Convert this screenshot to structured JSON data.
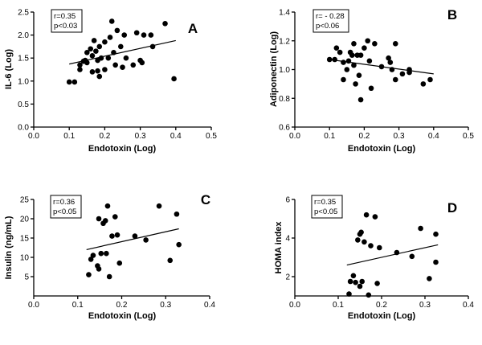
{
  "colors": {
    "ink": "#000000",
    "background": "#ffffff"
  },
  "chart_data": [
    {
      "type": "scatter",
      "letter": "A",
      "xlabel": "Endotoxin (Log)",
      "ylabel": "IL-6 (Log)",
      "grid": false,
      "xlim": [
        0,
        0.5
      ],
      "ylim": [
        0,
        2.5
      ],
      "xticks": [
        {
          "value": 0,
          "label": "0.0"
        },
        {
          "value": 0.1,
          "label": "0.1"
        },
        {
          "value": 0.2,
          "label": "0.2"
        },
        {
          "value": 0.3,
          "label": "0.3"
        },
        {
          "value": 0.4,
          "label": "0.4"
        },
        {
          "value": 0.5,
          "label": "0.5"
        }
      ],
      "yticks": [
        {
          "value": 0,
          "label": "0.0"
        },
        {
          "value": 0.5,
          "label": "0.5"
        },
        {
          "value": 1.0,
          "label": "1.0"
        },
        {
          "value": 1.5,
          "label": "1.5"
        },
        {
          "value": 2.0,
          "label": "2.0"
        },
        {
          "value": 2.5,
          "label": "2.5"
        }
      ],
      "stats": {
        "r": "r=0.35",
        "p": "p<0.03"
      },
      "fit_line": {
        "x": [
          0.1,
          0.4
        ],
        "y": [
          1.37,
          1.88
        ]
      },
      "x": [
        0.1,
        0.115,
        0.13,
        0.13,
        0.14,
        0.145,
        0.15,
        0.15,
        0.16,
        0.165,
        0.165,
        0.17,
        0.175,
        0.18,
        0.18,
        0.185,
        0.185,
        0.19,
        0.2,
        0.2,
        0.21,
        0.215,
        0.22,
        0.225,
        0.23,
        0.235,
        0.245,
        0.25,
        0.255,
        0.26,
        0.28,
        0.29,
        0.3,
        0.305,
        0.31,
        0.33,
        0.335,
        0.37,
        0.395
      ],
      "y": [
        0.98,
        0.98,
        1.35,
        1.25,
        1.43,
        1.45,
        1.62,
        1.4,
        1.7,
        1.55,
        1.2,
        1.88,
        1.65,
        1.45,
        1.22,
        1.1,
        1.75,
        1.5,
        1.25,
        1.85,
        1.5,
        1.95,
        2.3,
        1.62,
        1.35,
        2.1,
        1.75,
        1.3,
        2.0,
        1.5,
        1.35,
        2.05,
        1.45,
        1.4,
        2.0,
        2.0,
        1.75,
        2.25,
        1.05
      ]
    },
    {
      "type": "scatter",
      "letter": "B",
      "xlabel": "Endotoxin (Log)",
      "ylabel": "Adiponectin (Log)",
      "grid": false,
      "xlim": [
        0,
        0.5
      ],
      "ylim": [
        0.6,
        1.4
      ],
      "xticks": [
        {
          "value": 0,
          "label": "0.0"
        },
        {
          "value": 0.1,
          "label": "0.1"
        },
        {
          "value": 0.2,
          "label": "0.2"
        },
        {
          "value": 0.3,
          "label": "0.3"
        },
        {
          "value": 0.4,
          "label": "0.4"
        },
        {
          "value": 0.5,
          "label": "0.5"
        }
      ],
      "yticks": [
        {
          "value": 0.6,
          "label": "0.6"
        },
        {
          "value": 0.8,
          "label": "0.8"
        },
        {
          "value": 1.0,
          "label": "1.0"
        },
        {
          "value": 1.2,
          "label": "1.2"
        },
        {
          "value": 1.4,
          "label": "1.4"
        }
      ],
      "stats": {
        "r": "r= - 0.28",
        "p": "p<0.06"
      },
      "fit_line": {
        "x": [
          0.1,
          0.4
        ],
        "y": [
          1.07,
          0.97
        ]
      },
      "x": [
        0.1,
        0.115,
        0.12,
        0.13,
        0.14,
        0.14,
        0.15,
        0.155,
        0.16,
        0.165,
        0.17,
        0.17,
        0.175,
        0.18,
        0.19,
        0.185,
        0.19,
        0.2,
        0.21,
        0.215,
        0.22,
        0.23,
        0.25,
        0.27,
        0.275,
        0.28,
        0.29,
        0.29,
        0.31,
        0.33,
        0.33,
        0.37,
        0.39
      ],
      "y": [
        1.07,
        1.07,
        1.15,
        1.12,
        1.05,
        0.93,
        1.0,
        1.06,
        1.12,
        1.1,
        1.18,
        1.03,
        0.9,
        1.1,
        0.79,
        0.96,
        1.1,
        1.15,
        1.2,
        1.06,
        0.87,
        1.18,
        1.02,
        1.08,
        1.05,
        1.0,
        0.93,
        1.18,
        0.97,
        1.0,
        0.98,
        0.9,
        0.93
      ]
    },
    {
      "type": "scatter",
      "letter": "C",
      "xlabel": "Endotoxin (Log)",
      "ylabel": "Insulin (ng/mL)",
      "grid": false,
      "xlim": [
        0,
        0.4
      ],
      "ylim": [
        0,
        25
      ],
      "xticks": [
        {
          "value": 0,
          "label": "0.0"
        },
        {
          "value": 0.1,
          "label": "0.1"
        },
        {
          "value": 0.2,
          "label": "0.2"
        },
        {
          "value": 0.3,
          "label": "0.3"
        },
        {
          "value": 0.4,
          "label": "0.4"
        }
      ],
      "yticks": [
        {
          "value": 5,
          "label": "5"
        },
        {
          "value": 10,
          "label": "10"
        },
        {
          "value": 15,
          "label": "15"
        },
        {
          "value": 20,
          "label": "20"
        },
        {
          "value": 25,
          "label": "25"
        }
      ],
      "stats": {
        "r": "r=0.36",
        "p": "p<0.05"
      },
      "fit_line": {
        "x": [
          0.12,
          0.33
        ],
        "y": [
          12.0,
          17.4
        ]
      },
      "x": [
        0.125,
        0.13,
        0.135,
        0.145,
        0.148,
        0.148,
        0.153,
        0.158,
        0.163,
        0.168,
        0.165,
        0.172,
        0.178,
        0.185,
        0.19,
        0.195,
        0.23,
        0.255,
        0.285,
        0.31,
        0.325,
        0.33
      ],
      "y": [
        5.5,
        9.5,
        10.5,
        7.8,
        7.0,
        20.0,
        11.0,
        18.8,
        19.5,
        23.3,
        11.0,
        5.0,
        15.5,
        20.5,
        15.8,
        8.5,
        15.5,
        14.5,
        23.3,
        9.2,
        21.2,
        13.3
      ]
    },
    {
      "type": "scatter",
      "letter": "D",
      "xlabel": "Endotoxin (Log)",
      "ylabel": "HOMA index",
      "grid": false,
      "xlim": [
        0,
        0.4
      ],
      "ylim": [
        1,
        6
      ],
      "xticks": [
        {
          "value": 0,
          "label": "0.0"
        },
        {
          "value": 0.1,
          "label": "0.1"
        },
        {
          "value": 0.2,
          "label": "0.2"
        },
        {
          "value": 0.3,
          "label": "0.3"
        },
        {
          "value": 0.4,
          "label": "0.4"
        }
      ],
      "yticks": [
        {
          "value": 2,
          "label": "2"
        },
        {
          "value": 4,
          "label": "4"
        },
        {
          "value": 6,
          "label": "6"
        }
      ],
      "stats": {
        "r": "r=0.35",
        "p": "p<0.05"
      },
      "fit_line": {
        "x": [
          0.12,
          0.33
        ],
        "y": [
          2.6,
          3.65
        ]
      },
      "x": [
        0.125,
        0.128,
        0.135,
        0.14,
        0.145,
        0.15,
        0.153,
        0.15,
        0.155,
        0.16,
        0.165,
        0.17,
        0.175,
        0.185,
        0.19,
        0.195,
        0.235,
        0.27,
        0.29,
        0.31,
        0.325,
        0.325
      ],
      "y": [
        1.1,
        1.75,
        2.05,
        1.7,
        3.9,
        4.2,
        4.3,
        1.5,
        1.75,
        3.8,
        5.2,
        1.05,
        3.6,
        5.1,
        1.65,
        3.5,
        3.25,
        3.05,
        4.5,
        1.9,
        4.2,
        2.75
      ]
    }
  ]
}
